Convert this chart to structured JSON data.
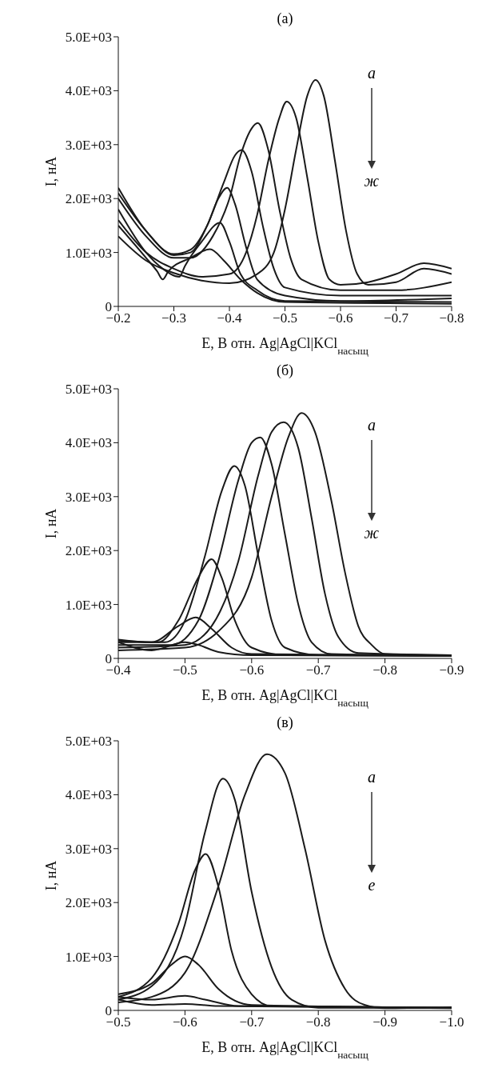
{
  "chart_data": [
    {
      "type": "line",
      "title": "(а)",
      "xlabel": "E, В отн. Ag|AgCl|KCl$_{насыщ}$",
      "ylabel": "I, нА",
      "xlim": [
        -0.2,
        -0.8
      ],
      "xticks": [
        {
          "value": -0.2,
          "label": "−0.2"
        },
        {
          "value": -0.3,
          "label": "−0.3"
        },
        {
          "value": -0.4,
          "label": "−0.4"
        },
        {
          "value": -0.5,
          "label": "−0.5"
        },
        {
          "value": -0.6,
          "label": "−0.6"
        },
        {
          "value": -0.7,
          "label": "−0.7"
        },
        {
          "value": -0.8,
          "label": "−0.8"
        }
      ],
      "ylim": [
        0,
        5000
      ],
      "yticks": [
        {
          "value": 0,
          "label": "0"
        },
        {
          "value": 1000,
          "label": "1.0E+03"
        },
        {
          "value": 2000,
          "label": "2.0E+03"
        },
        {
          "value": 3000,
          "label": "3.0E+03"
        },
        {
          "value": 4000,
          "label": "4.0E+03"
        },
        {
          "value": 5000,
          "label": "5.0E+03"
        }
      ],
      "annotations": [
        "а",
        "ж"
      ],
      "series": [
        {
          "color": "#1a1a1a",
          "x": [
            -0.2,
            -0.25,
            -0.3,
            -0.35,
            -0.4,
            -0.45,
            -0.48,
            -0.5,
            -0.52,
            -0.54,
            -0.555,
            -0.57,
            -0.59,
            -0.61,
            -0.63,
            -0.65,
            -0.7,
            -0.75,
            -0.8
          ],
          "values": [
            1300,
            850,
            620,
            480,
            430,
            600,
            1000,
            1800,
            2900,
            3900,
            4200,
            3900,
            2700,
            1400,
            600,
            400,
            450,
            700,
            600
          ]
        },
        {
          "color": "#1a1a1a",
          "x": [
            -0.2,
            -0.25,
            -0.3,
            -0.35,
            -0.4,
            -0.43,
            -0.45,
            -0.47,
            -0.49,
            -0.503,
            -0.52,
            -0.54,
            -0.56,
            -0.58,
            -0.6,
            -0.65,
            -0.7,
            -0.75,
            -0.8
          ],
          "values": [
            1600,
            1000,
            700,
            550,
            600,
            1000,
            1700,
            2700,
            3500,
            3800,
            3500,
            2400,
            1200,
            500,
            400,
            450,
            600,
            800,
            700
          ]
        },
        {
          "color": "#1a1a1a",
          "x": [
            -0.2,
            -0.25,
            -0.3,
            -0.33,
            -0.37,
            -0.4,
            -0.42,
            -0.44,
            -0.451,
            -0.47,
            -0.49,
            -0.51,
            -0.53,
            -0.6,
            -0.7,
            -0.8
          ],
          "values": [
            2000,
            1300,
            900,
            900,
            1300,
            2000,
            2800,
            3300,
            3400,
            2900,
            1800,
            900,
            500,
            300,
            300,
            450
          ]
        },
        {
          "color": "#1a1a1a",
          "x": [
            -0.2,
            -0.25,
            -0.3,
            -0.33,
            -0.36,
            -0.39,
            -0.41,
            -0.422,
            -0.44,
            -0.46,
            -0.48,
            -0.5,
            -0.6,
            -0.8
          ],
          "values": [
            2100,
            1400,
            950,
            1000,
            1500,
            2300,
            2800,
            2900,
            2500,
            1500,
            700,
            350,
            200,
            200
          ]
        },
        {
          "color": "#1a1a1a",
          "x": [
            -0.2,
            -0.25,
            -0.3,
            -0.33,
            -0.36,
            -0.38,
            -0.396,
            -0.41,
            -0.43,
            -0.45,
            -0.5,
            -0.6,
            -0.8
          ],
          "values": [
            2200,
            1400,
            970,
            1050,
            1500,
            2000,
            2200,
            1900,
            1100,
            500,
            200,
            100,
            150
          ]
        },
        {
          "color": "#1a1a1a",
          "x": [
            -0.2,
            -0.25,
            -0.28,
            -0.31,
            -0.32,
            -0.35,
            -0.383,
            -0.4,
            -0.42,
            -0.45,
            -0.5,
            -0.8
          ],
          "values": [
            1800,
            1000,
            700,
            550,
            750,
            1200,
            1550,
            1200,
            600,
            300,
            100,
            80
          ]
        },
        {
          "color": "#1a1a1a",
          "x": [
            -0.2,
            -0.25,
            -0.27,
            -0.28,
            -0.29,
            -0.33,
            -0.365,
            -0.39,
            -0.42,
            -0.45,
            -0.5,
            -0.8
          ],
          "values": [
            1500,
            900,
            650,
            500,
            650,
            900,
            1060,
            850,
            500,
            250,
            80,
            50
          ]
        }
      ]
    },
    {
      "type": "line",
      "title": "(б)",
      "xlabel": "E, В отн. Ag|AgCl|KCl$_{насыщ}$",
      "ylabel": "I, нА",
      "xlim": [
        -0.4,
        -0.9
      ],
      "xticks": [
        {
          "value": -0.4,
          "label": "−0.4"
        },
        {
          "value": -0.5,
          "label": "−0.5"
        },
        {
          "value": -0.6,
          "label": "−0.6"
        },
        {
          "value": -0.7,
          "label": "−0.7"
        },
        {
          "value": -0.8,
          "label": "−0.8"
        },
        {
          "value": -0.9,
          "label": "−0.9"
        }
      ],
      "ylim": [
        0,
        5000
      ],
      "yticks": [
        {
          "value": 0,
          "label": "0"
        },
        {
          "value": 1000,
          "label": "1.0E+03"
        },
        {
          "value": 2000,
          "label": "2.0E+03"
        },
        {
          "value": 3000,
          "label": "3.0E+03"
        },
        {
          "value": 4000,
          "label": "4.0E+03"
        },
        {
          "value": 5000,
          "label": "5.0E+03"
        }
      ],
      "annotations": [
        "а",
        "ж"
      ],
      "series": [
        {
          "color": "#1a1a1a",
          "x": [
            -0.4,
            -0.5,
            -0.55,
            -0.6,
            -0.63,
            -0.655,
            -0.675,
            -0.695,
            -0.72,
            -0.74,
            -0.76,
            -0.78,
            -0.8,
            -0.9
          ],
          "values": [
            150,
            200,
            500,
            1500,
            3000,
            4100,
            4550,
            4200,
            2900,
            1600,
            600,
            250,
            80,
            60
          ]
        },
        {
          "color": "#1a1a1a",
          "x": [
            -0.4,
            -0.5,
            -0.54,
            -0.58,
            -0.61,
            -0.63,
            -0.648,
            -0.67,
            -0.69,
            -0.71,
            -0.73,
            -0.76,
            -0.9
          ],
          "values": [
            200,
            250,
            600,
            1800,
            3400,
            4200,
            4380,
            3900,
            2600,
            1200,
            400,
            100,
            60
          ]
        },
        {
          "color": "#1a1a1a",
          "x": [
            -0.4,
            -0.48,
            -0.52,
            -0.55,
            -0.58,
            -0.6,
            -0.613,
            -0.63,
            -0.65,
            -0.67,
            -0.69,
            -0.72,
            -0.9
          ],
          "values": [
            250,
            250,
            700,
            1800,
            3300,
            4000,
            4100,
            3600,
            2300,
            1000,
            300,
            80,
            50
          ]
        },
        {
          "color": "#1a1a1a",
          "x": [
            -0.4,
            -0.47,
            -0.5,
            -0.53,
            -0.555,
            -0.574,
            -0.59,
            -0.61,
            -0.63,
            -0.65,
            -0.7,
            -0.9
          ],
          "values": [
            300,
            300,
            700,
            1900,
            3100,
            3570,
            3200,
            1900,
            700,
            200,
            60,
            50
          ]
        },
        {
          "color": "#1a1a1a",
          "x": [
            -0.4,
            -0.46,
            -0.49,
            -0.52,
            -0.54,
            -0.555,
            -0.575,
            -0.6,
            -0.65,
            -0.9
          ],
          "values": [
            330,
            300,
            700,
            1500,
            1840,
            1500,
            700,
            200,
            60,
            50
          ]
        },
        {
          "color": "#1a1a1a",
          "x": [
            -0.4,
            -0.45,
            -0.49,
            -0.516,
            -0.54,
            -0.57,
            -0.6,
            -0.9
          ],
          "values": [
            350,
            300,
            600,
            760,
            550,
            200,
            80,
            50
          ]
        },
        {
          "color": "#1a1a1a",
          "x": [
            -0.4,
            -0.45,
            -0.5,
            -0.52,
            -0.55,
            -0.6,
            -0.9
          ],
          "values": [
            300,
            150,
            300,
            250,
            120,
            60,
            50
          ]
        }
      ]
    },
    {
      "type": "line",
      "title": "(в)",
      "xlabel": "E, В отн. Ag|AgCl|KCl$_{насыщ}$",
      "ylabel": "I, нА",
      "xlim": [
        -0.5,
        -1.0
      ],
      "xticks": [
        {
          "value": -0.5,
          "label": "−0.5"
        },
        {
          "value": -0.6,
          "label": "−0.6"
        },
        {
          "value": -0.7,
          "label": "−0.7"
        },
        {
          "value": -0.8,
          "label": "−0.8"
        },
        {
          "value": -0.9,
          "label": "−0.9"
        },
        {
          "value": -1.0,
          "label": "−1.0"
        }
      ],
      "ylim": [
        0,
        5000
      ],
      "yticks": [
        {
          "value": 0,
          "label": "0"
        },
        {
          "value": 1000,
          "label": "1.0E+03"
        },
        {
          "value": 2000,
          "label": "2.0E+03"
        },
        {
          "value": 3000,
          "label": "3.0E+03"
        },
        {
          "value": 4000,
          "label": "4.0E+03"
        },
        {
          "value": 5000,
          "label": "5.0E+03"
        }
      ],
      "annotations": [
        "а",
        "е"
      ],
      "series": [
        {
          "color": "#1a1a1a",
          "x": [
            -0.5,
            -0.55,
            -0.6,
            -0.65,
            -0.69,
            -0.723,
            -0.75,
            -0.78,
            -0.81,
            -0.84,
            -0.87,
            -0.9,
            -1.0
          ],
          "values": [
            150,
            250,
            700,
            2300,
            4000,
            4750,
            4400,
            3000,
            1300,
            400,
            100,
            40,
            60
          ]
        },
        {
          "color": "#1a1a1a",
          "x": [
            -0.5,
            -0.55,
            -0.6,
            -0.63,
            -0.657,
            -0.675,
            -0.7,
            -0.73,
            -0.76,
            -0.8,
            -1.0
          ],
          "values": [
            200,
            450,
            1600,
            3300,
            4300,
            3900,
            2200,
            800,
            200,
            50,
            50
          ]
        },
        {
          "color": "#1a1a1a",
          "x": [
            -0.5,
            -0.55,
            -0.59,
            -0.615,
            -0.631,
            -0.65,
            -0.67,
            -0.7,
            -0.73,
            -1.0
          ],
          "values": [
            250,
            600,
            1600,
            2600,
            2900,
            2300,
            1100,
            300,
            80,
            50
          ]
        },
        {
          "color": "#1a1a1a",
          "x": [
            -0.5,
            -0.55,
            -0.58,
            -0.6,
            -0.62,
            -0.65,
            -0.7,
            -1.0
          ],
          "values": [
            300,
            500,
            850,
            1000,
            850,
            400,
            100,
            50
          ]
        },
        {
          "color": "#1a1a1a",
          "x": [
            -0.5,
            -0.55,
            -0.6,
            -0.63,
            -0.68,
            -1.0
          ],
          "values": [
            250,
            200,
            270,
            200,
            80,
            50
          ]
        },
        {
          "color": "#1a1a1a",
          "x": [
            -0.5,
            -0.55,
            -0.6,
            -0.65,
            -1.0
          ],
          "values": [
            200,
            100,
            120,
            80,
            40
          ]
        }
      ]
    }
  ]
}
